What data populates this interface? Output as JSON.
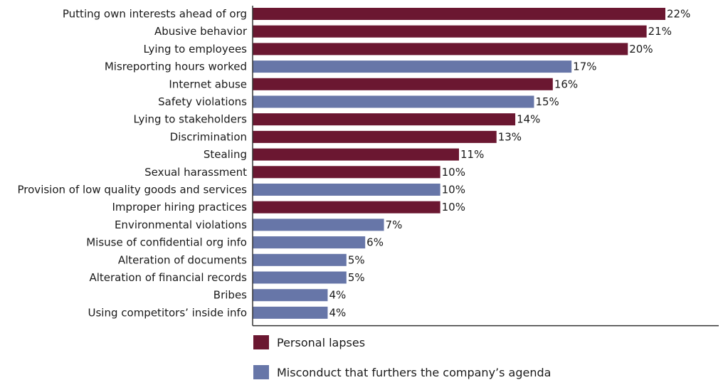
{
  "chart_data": {
    "type": "bar",
    "orientation": "horizontal",
    "xlim": [
      0,
      22
    ],
    "grid": false,
    "legend_placement": "bottom",
    "series_styles": [
      {
        "key": "personal",
        "name": "Personal lapses",
        "color": "#6b1731"
      },
      {
        "key": "agenda",
        "name": "Misconduct that furthers the company’s agenda",
        "color": "#6776a8"
      }
    ],
    "bars": [
      {
        "category": "Putting own interests ahead of org",
        "value": 22,
        "label": "22%",
        "series": "personal"
      },
      {
        "category": "Abusive behavior",
        "value": 21,
        "label": "21%",
        "series": "personal"
      },
      {
        "category": "Lying to employees",
        "value": 20,
        "label": "20%",
        "series": "personal"
      },
      {
        "category": "Misreporting hours worked",
        "value": 17,
        "label": "17%",
        "series": "agenda"
      },
      {
        "category": "Internet abuse",
        "value": 16,
        "label": "16%",
        "series": "personal"
      },
      {
        "category": "Safety violations",
        "value": 15,
        "label": "15%",
        "series": "agenda"
      },
      {
        "category": "Lying to stakeholders",
        "value": 14,
        "label": "14%",
        "series": "personal"
      },
      {
        "category": "Discrimination",
        "value": 13,
        "label": "13%",
        "series": "personal"
      },
      {
        "category": "Stealing",
        "value": 11,
        "label": "11%",
        "series": "personal"
      },
      {
        "category": "Sexual harassment",
        "value": 10,
        "label": "10%",
        "series": "personal"
      },
      {
        "category": "Provision of low quality goods and services",
        "value": 10,
        "label": "10%",
        "series": "agenda"
      },
      {
        "category": "Improper hiring practices",
        "value": 10,
        "label": "10%",
        "series": "personal"
      },
      {
        "category": "Environmental violations",
        "value": 7,
        "label": "7%",
        "series": "agenda"
      },
      {
        "category": "Misuse of confidential org info",
        "value": 6,
        "label": "6%",
        "series": "agenda"
      },
      {
        "category": "Alteration of documents",
        "value": 5,
        "label": "5%",
        "series": "agenda"
      },
      {
        "category": "Alteration of financial records",
        "value": 5,
        "label": "5%",
        "series": "agenda"
      },
      {
        "category": "Bribes",
        "value": 4,
        "label": "4%",
        "series": "agenda"
      },
      {
        "category": "Using competitors’ inside info",
        "value": 4,
        "label": "4%",
        "series": "agenda"
      }
    ]
  }
}
